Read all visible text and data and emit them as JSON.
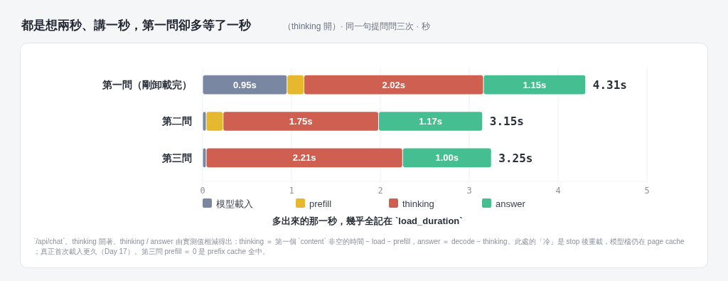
{
  "chart_data": {
    "type": "bar",
    "orientation": "horizontal",
    "stacked": true,
    "title": "都是想兩秒、講一秒，第一問卻多等了一秒",
    "subtitle": "（thinking 開）· 同一句提問問三次 · 秒",
    "xlabel": "多出來的那一秒，幾乎全記在 `load_duration`",
    "categories": [
      "第一問（剛卸載完）",
      "第二問",
      "第三問"
    ],
    "series": [
      {
        "name": "模型載入",
        "color": "#7a87a3",
        "values": [
          0.95,
          0.04,
          0.04
        ],
        "value_labels": [
          "0.95s",
          null,
          null
        ]
      },
      {
        "name": "prefill",
        "color": "#e5b82e",
        "values": [
          0.19,
          0.19,
          0
        ]
      },
      {
        "name": "thinking",
        "color": "#cf5f51",
        "values": [
          2.02,
          1.75,
          2.21
        ],
        "value_labels": [
          "2.02s",
          "1.75s",
          "2.21s"
        ]
      },
      {
        "name": "answer",
        "color": "#45be92",
        "values": [
          1.15,
          1.17,
          1.0
        ],
        "value_labels": [
          "1.15s",
          "1.17s",
          "1.00s"
        ]
      }
    ],
    "totals": [
      "4.31s",
      "3.15s",
      "3.25s"
    ],
    "xlim": [
      0,
      5
    ],
    "xticks": [
      0,
      1,
      2,
      3,
      4,
      5
    ],
    "grid": "x",
    "legend": "bottom",
    "annotations": [
      "`/api/chat`。thinking 開著。thinking / answer 由實測值相減得出：thinking ＝ 第一個 `content` 非空的時間 − load − prefill，answer ＝ decode − thinking。此處的「冷」是 stop 後重載，模型檔仍在 page cache；真正首次載入更久（Day 17）。第三問 prefill ＝ 0 是 prefix cache 全中。"
    ]
  }
}
